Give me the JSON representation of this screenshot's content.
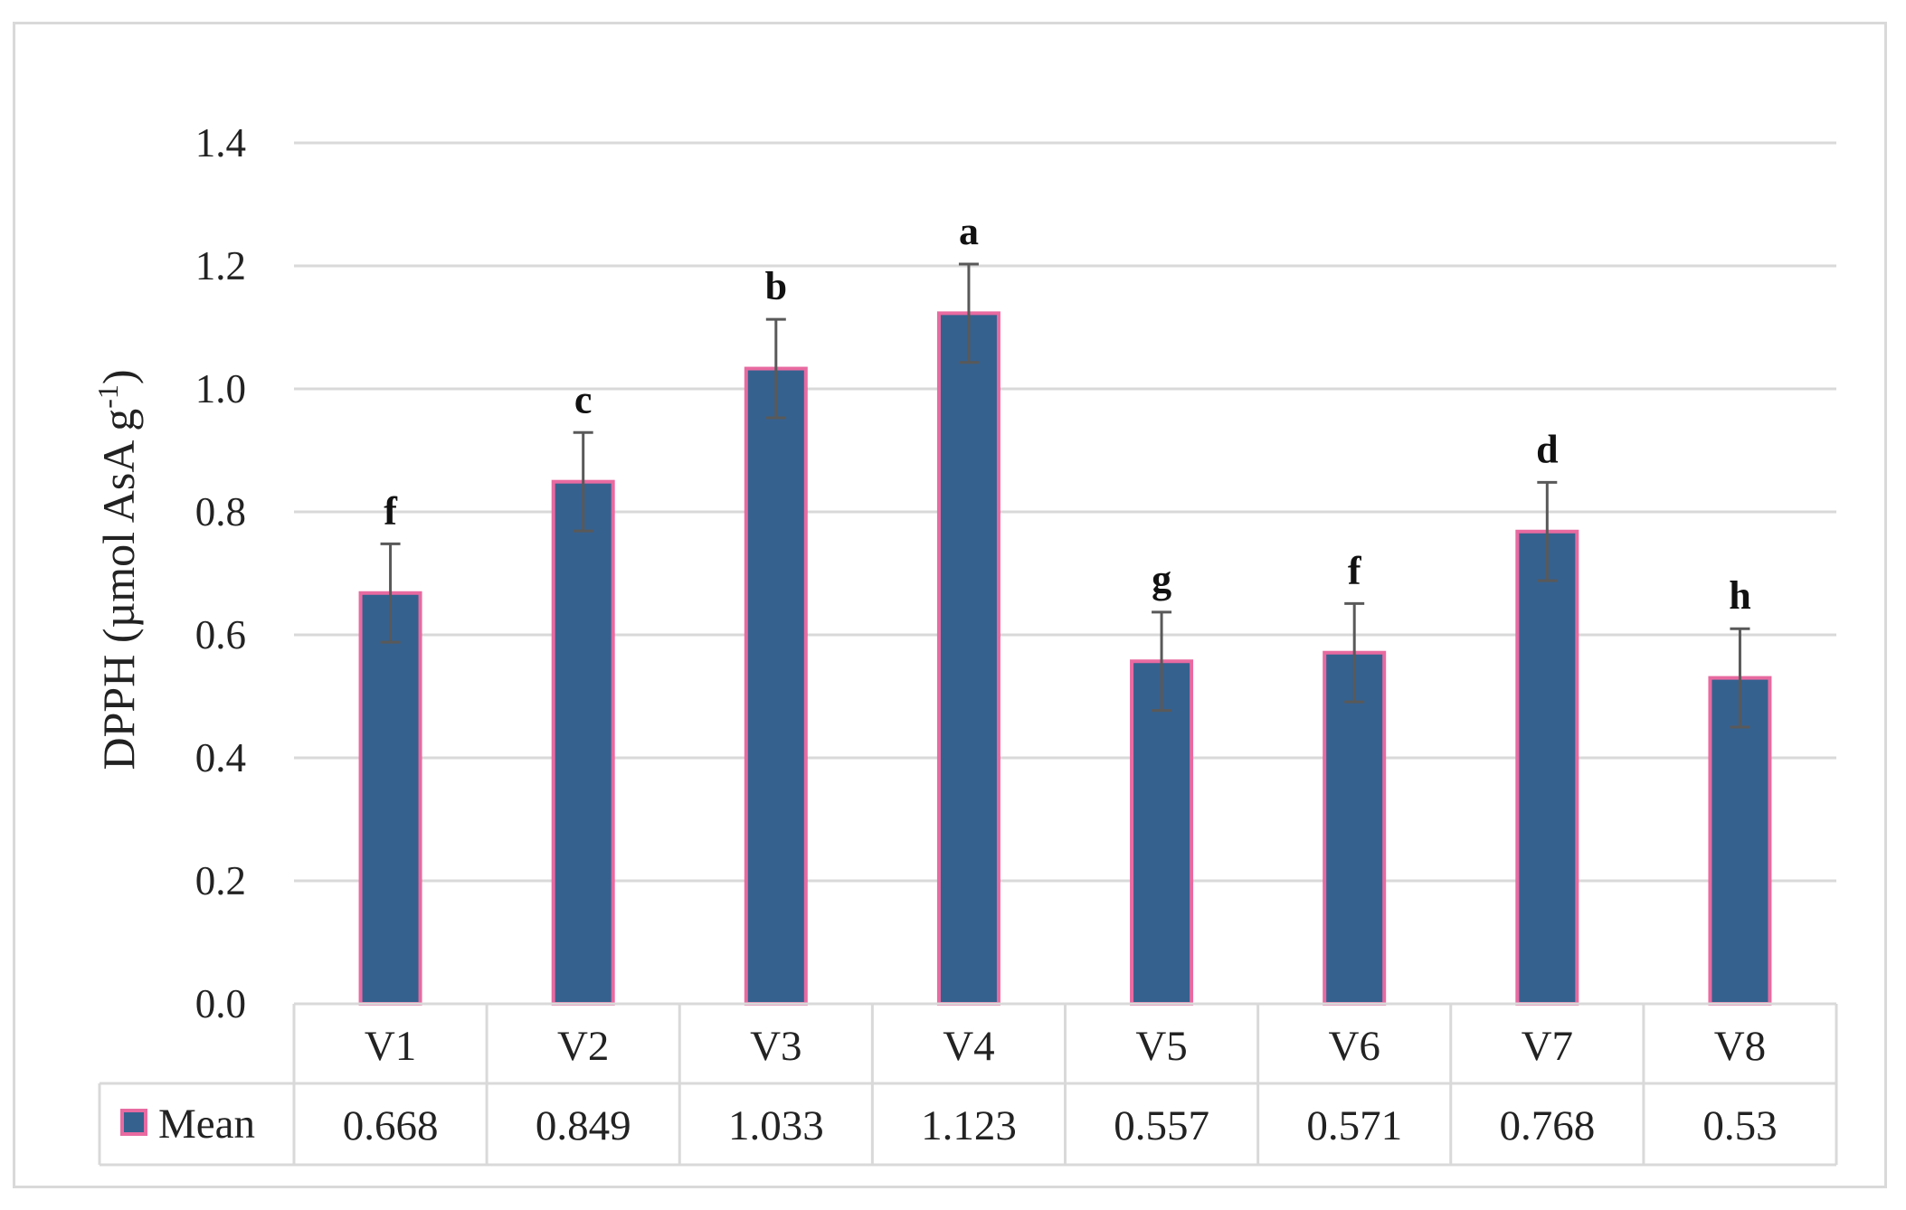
{
  "chart_data": {
    "type": "bar",
    "title": "",
    "xlabel": "",
    "ylabel": "DPPH (µmol AsA g",
    "ylabel_superscript": "-1",
    "ylabel_close": ")",
    "ylim": [
      0,
      1.4
    ],
    "yticks": [
      "0.0",
      "0.2",
      "0.4",
      "0.6",
      "0.8",
      "1.0",
      "1.2",
      "1.4"
    ],
    "grid": true,
    "categories": [
      "V1",
      "V2",
      "V3",
      "V4",
      "V5",
      "V6",
      "V7",
      "V8"
    ],
    "series": [
      {
        "name": "Mean",
        "values": [
          0.668,
          0.849,
          1.033,
          1.123,
          0.557,
          0.571,
          0.768,
          0.53
        ],
        "value_labels": [
          "0.668",
          "0.849",
          "1.033",
          "1.123",
          "0.557",
          "0.571",
          "0.768",
          "0.53"
        ],
        "error": [
          0.08,
          0.08,
          0.08,
          0.08,
          0.08,
          0.08,
          0.08,
          0.08
        ],
        "fill_color": "#35618f",
        "border_color": "#e86aa0"
      }
    ],
    "significance_letters": [
      "f",
      "c",
      "b",
      "a",
      "g",
      "f",
      "d",
      "h"
    ],
    "legend_placement": "data-table",
    "colors": {
      "gridline": "#d9d9d9",
      "error_bar": "#595959",
      "table_border": "#d9d9d9"
    }
  }
}
